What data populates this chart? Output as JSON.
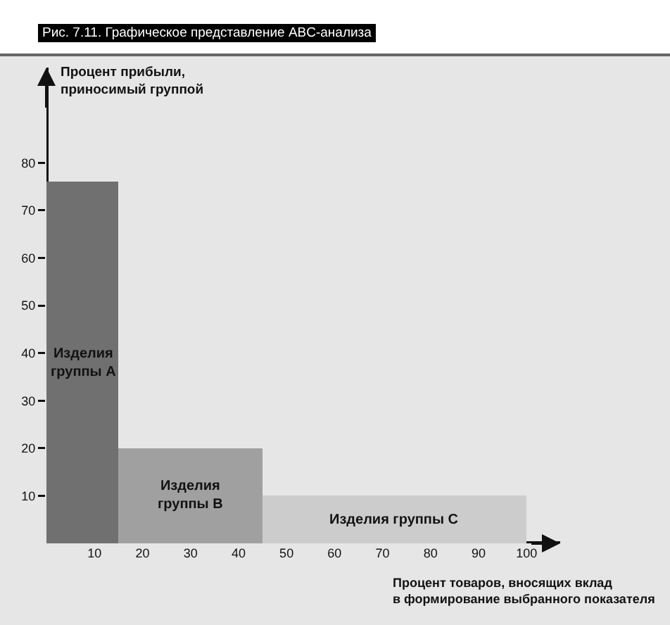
{
  "chart_data": {
    "type": "histogram",
    "title": "Рис. 7.11. Графическое представление ABC-анализа",
    "xlabel": "Процент товаров, вносящих вклад\nв формирование выбранного показателя",
    "ylabel": "Процент прибыли,\nприносимый группой",
    "bins": [
      0,
      15,
      45,
      100
    ],
    "values": [
      76,
      20,
      10
    ],
    "colors": [
      "#707070",
      "#a0a0a0",
      "#cccccc"
    ],
    "xlim": [
      0,
      107
    ],
    "ylim": [
      0,
      100
    ],
    "xticks": [
      10,
      20,
      30,
      40,
      50,
      60,
      70,
      80,
      90,
      100
    ],
    "yticks": [
      10,
      20,
      30,
      40,
      50,
      60,
      70,
      80
    ],
    "grid": false,
    "annotations": [
      "Изделия\nгруппы A",
      "Изделия\nгруппы B",
      "Изделия группы C"
    ]
  }
}
